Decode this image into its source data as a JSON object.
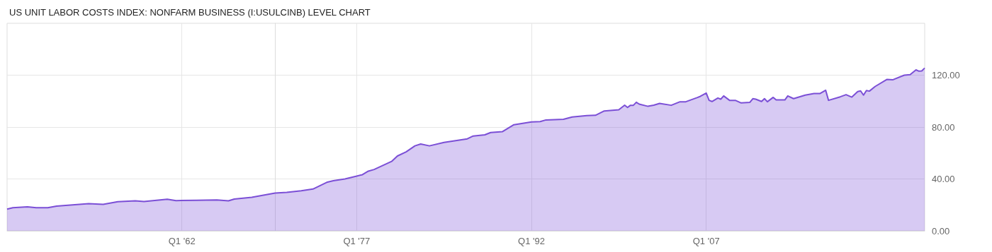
{
  "chart_data": {
    "type": "area",
    "title": "US UNIT LABOR COSTS INDEX: NONFARM BUSINESS (I:USULCINB) LEVEL CHART",
    "x": [
      "1947-01",
      "1947-07",
      "1948-10",
      "1949-07",
      "1950-07",
      "1951-04",
      "1954-01",
      "1955-04",
      "1956-07",
      "1958-01",
      "1958-10",
      "1960-10",
      "1961-07",
      "1963-04",
      "1965-01",
      "1966-01",
      "1966-07",
      "1968-01",
      "1970-01",
      "1971-01",
      "1972-04",
      "1973-04",
      "1974-07",
      "1975-01",
      "1976-01",
      "1977-01",
      "1977-07",
      "1978-01",
      "1978-07",
      "1980-01",
      "1980-07",
      "1981-04",
      "1982-01",
      "1982-07",
      "1983-04",
      "1984-07",
      "1986-07",
      "1987-01",
      "1988-01",
      "1988-07",
      "1989-07",
      "1990-07",
      "1992-01",
      "1992-10",
      "1993-04",
      "1994-10",
      "1995-07",
      "1996-10",
      "1997-07",
      "1998-04",
      "1999-07",
      "2000-01",
      "2000-04",
      "2000-07",
      "2000-10",
      "2001-01",
      "2001-04",
      "2002-01",
      "2002-07",
      "2003-01",
      "2004-01",
      "2004-10",
      "2005-04",
      "2006-04",
      "2006-07",
      "2007-01",
      "2007-04",
      "2007-07",
      "2008-01",
      "2008-04",
      "2008-07",
      "2009-01",
      "2009-07",
      "2010-01",
      "2010-10",
      "2011-01",
      "2011-04",
      "2011-10",
      "2012-01",
      "2012-04",
      "2012-10",
      "2013-01",
      "2013-10",
      "2014-01",
      "2014-07",
      "2015-07",
      "2016-04",
      "2016-10",
      "2017-04",
      "2017-07",
      "2018-07",
      "2019-01",
      "2019-07",
      "2020-01",
      "2020-04",
      "2020-07",
      "2020-10",
      "2021-01",
      "2021-07",
      "2022-07",
      "2023-01",
      "2024-01",
      "2024-07",
      "2025-01",
      "2025-04",
      "2025-07",
      "2025-10"
    ],
    "series": [
      {
        "color": "#7b4fd6",
        "values": [
          16.7,
          17.8,
          18.5,
          17.8,
          17.8,
          19.1,
          20.9,
          20.4,
          22.4,
          23.1,
          22.6,
          24.4,
          23.3,
          23.5,
          23.8,
          23.1,
          24.5,
          25.9,
          29.1,
          29.7,
          30.9,
          32.2,
          37.6,
          38.6,
          40.0,
          42.2,
          43.3,
          46.0,
          47.3,
          53.5,
          57.7,
          60.9,
          65.5,
          66.9,
          65.5,
          68.2,
          70.9,
          73.1,
          74.0,
          75.8,
          76.4,
          81.8,
          84.0,
          84.2,
          85.5,
          86.0,
          87.8,
          88.8,
          89.1,
          92.4,
          93.3,
          96.9,
          95.1,
          96.8,
          96.8,
          99.1,
          97.7,
          96.0,
          96.9,
          98.2,
          96.8,
          99.5,
          99.5,
          102.8,
          103.7,
          106.2,
          100.6,
          99.7,
          102.4,
          101.5,
          104.0,
          100.6,
          100.6,
          98.6,
          99.1,
          101.9,
          101.5,
          99.7,
          101.9,
          99.5,
          102.9,
          100.9,
          100.9,
          104.0,
          101.9,
          104.6,
          105.8,
          105.8,
          108.4,
          100.6,
          103.3,
          105.0,
          103.1,
          107.3,
          107.9,
          104.6,
          108.2,
          107.7,
          111.3,
          116.7,
          116.4,
          120.0,
          120.4,
          124.1,
          123.1,
          123.3,
          125.5
        ]
      }
    ],
    "xlim": [
      "1947-01",
      "2025-10"
    ],
    "xticks": [
      {
        "value": "1962-01",
        "label": "Q1 '62"
      },
      {
        "value": "1977-01",
        "label": "Q1 '77"
      },
      {
        "value": "1992-01",
        "label": "Q1 '92"
      },
      {
        "value": "2007-01",
        "label": "Q1 '07"
      }
    ],
    "ylim": [
      0,
      160
    ],
    "yticks": [
      {
        "value": 0,
        "label": "0.00"
      },
      {
        "value": 40,
        "label": "40.00"
      },
      {
        "value": 80,
        "label": "80.00"
      },
      {
        "value": 120,
        "label": "120.00"
      }
    ],
    "grid": true,
    "marker": "none",
    "line_style": "solid"
  }
}
